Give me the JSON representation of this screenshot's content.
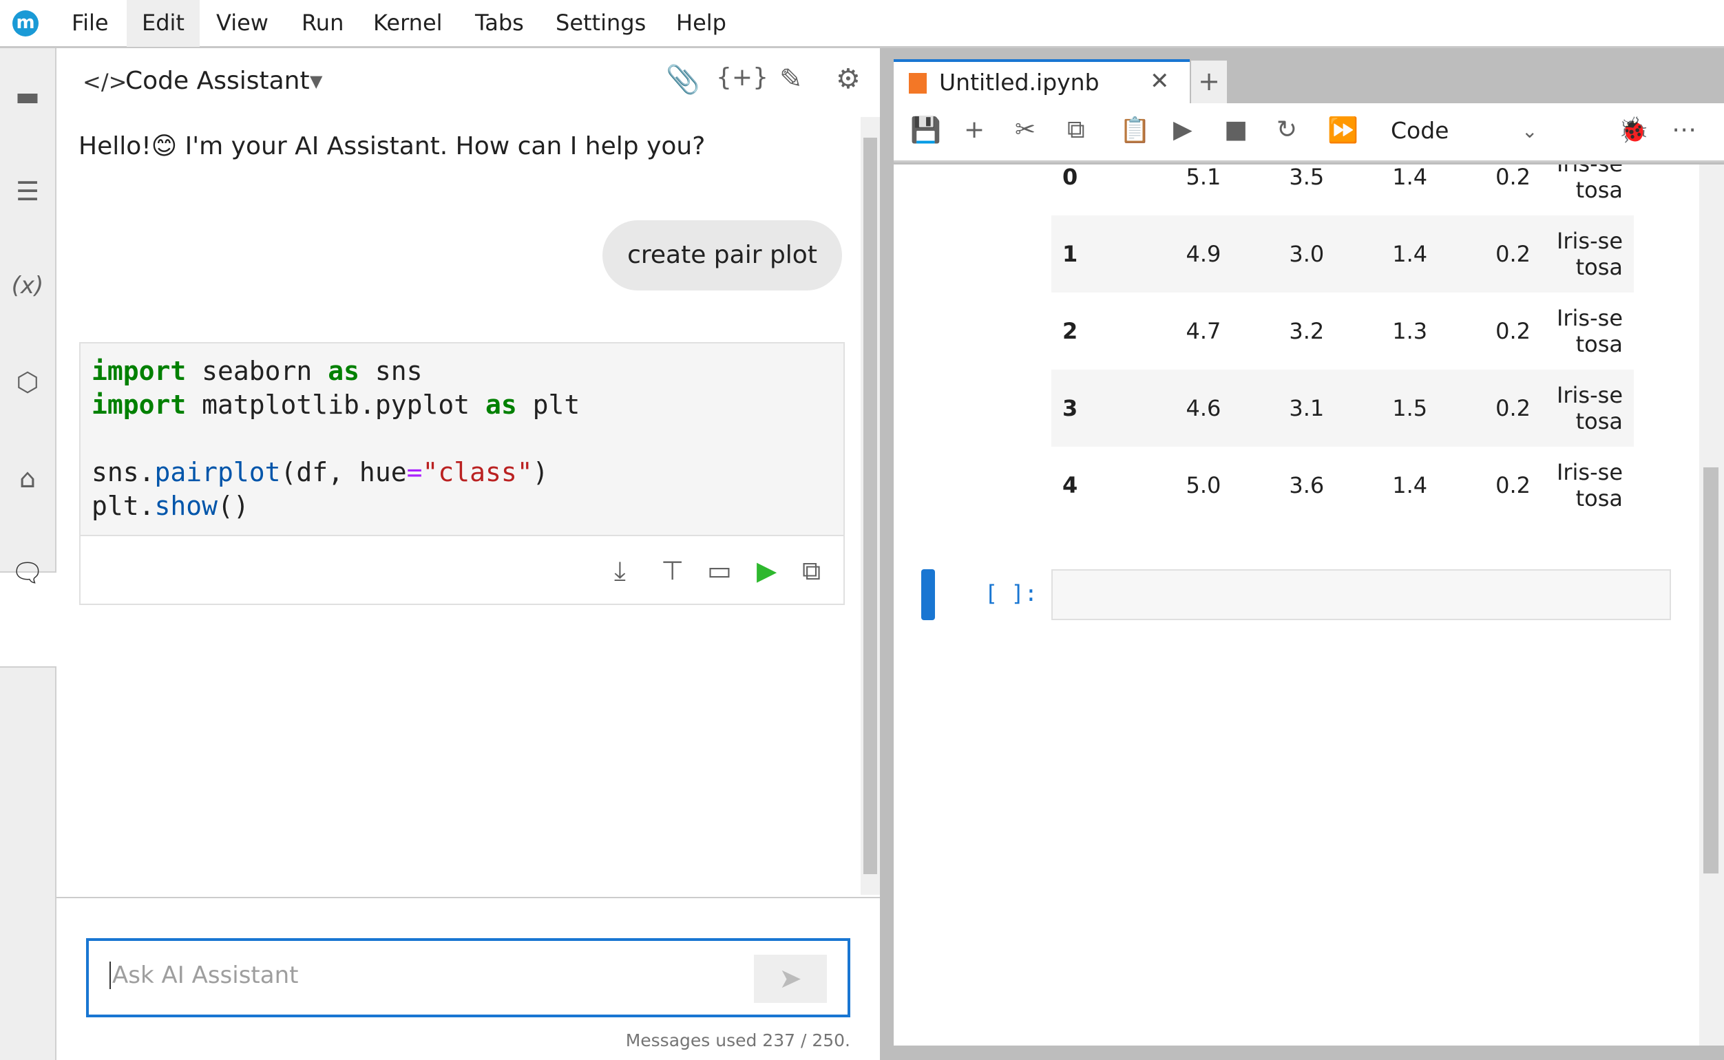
{
  "menubar": {
    "logo": "m",
    "items": [
      "File",
      "Edit",
      "View",
      "Run",
      "Kernel",
      "Tabs",
      "Settings",
      "Help"
    ],
    "active": "Edit"
  },
  "chat": {
    "title": "Code Assistant",
    "greeting": "Hello!😊 I'm your AI Assistant. How can I help you?",
    "user_message": "create pair plot",
    "code_lines": [
      [
        "import",
        " seaborn ",
        "as",
        " sns"
      ],
      [
        "import",
        " matplotlib.pyplot ",
        "as",
        " plt"
      ],
      [
        "sns.",
        "pairplot",
        "(df, hue",
        "=",
        "\"class\"",
        ")"
      ],
      [
        "plt.",
        "show",
        "()"
      ]
    ],
    "input_placeholder": "Ask AI Assistant",
    "usage": "Messages used 237 / 250."
  },
  "notebook": {
    "tab_title": "Untitled.ipynb",
    "cell_type": "Code",
    "prompt": "[ ]:",
    "rows": [
      [
        "0",
        "5.1",
        "3.5",
        "1.4",
        "0.2",
        "Iris-setosa"
      ],
      [
        "1",
        "4.9",
        "3.0",
        "1.4",
        "0.2",
        "Iris-setosa"
      ],
      [
        "2",
        "4.7",
        "3.2",
        "1.3",
        "0.2",
        "Iris-setosa"
      ],
      [
        "3",
        "4.6",
        "3.1",
        "1.5",
        "0.2",
        "Iris-setosa"
      ],
      [
        "4",
        "5.0",
        "3.6",
        "1.4",
        "0.2",
        "Iris-setosa"
      ]
    ]
  },
  "colors": {
    "accent": "#1976d2",
    "run": "#2eb82e",
    "notebook_icon": "#f37726"
  }
}
